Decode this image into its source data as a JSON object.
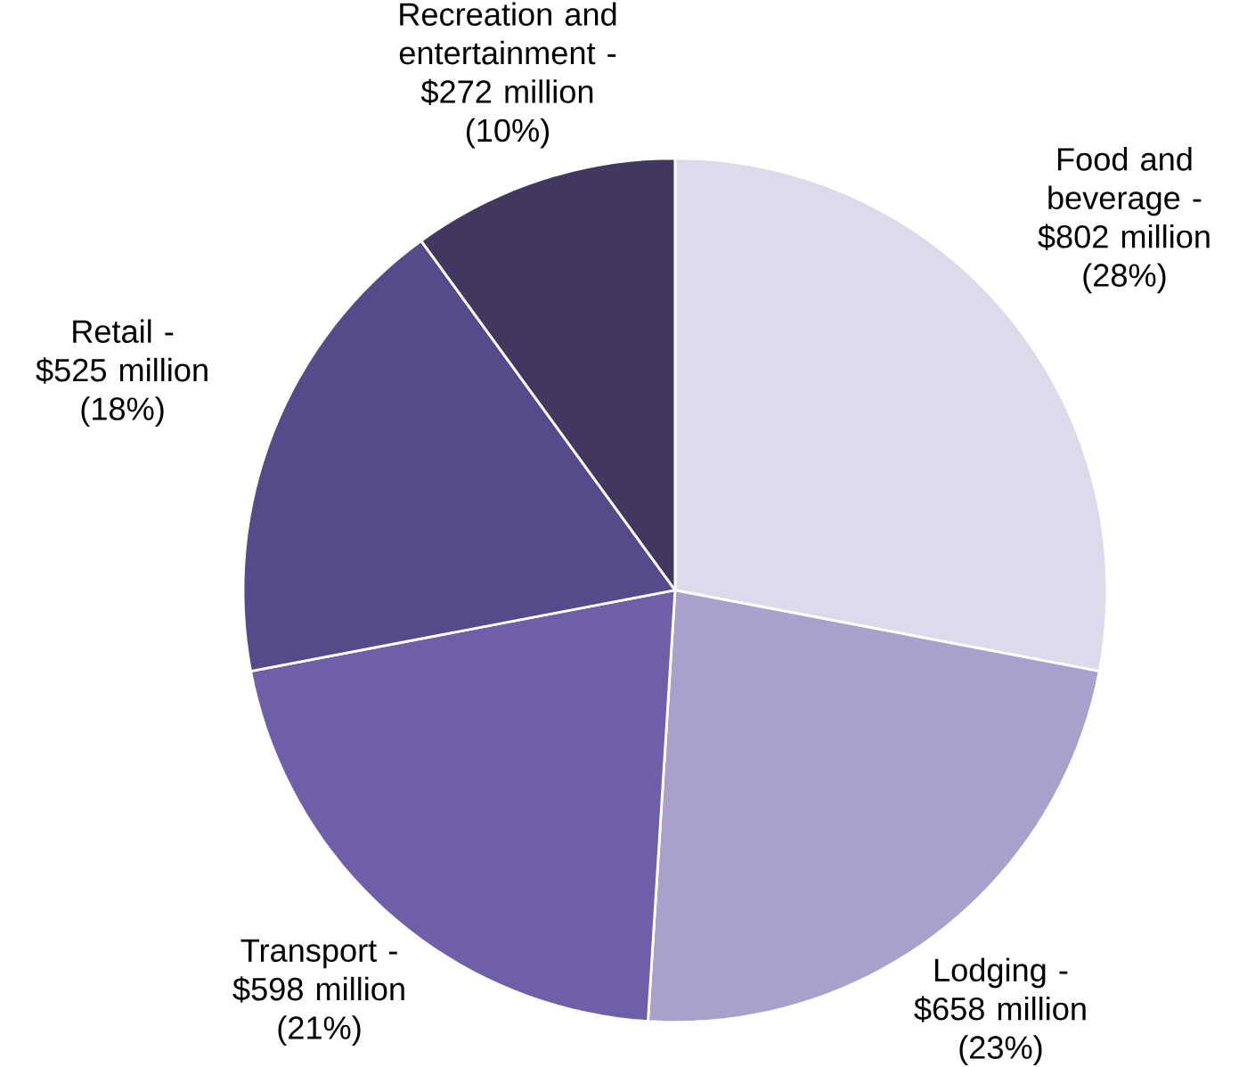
{
  "chart_data": {
    "type": "pie",
    "categories": [
      "Food and beverage -",
      "Lodging -",
      "Transport -",
      "Retail -",
      "Recreation and entertainment -"
    ],
    "value_labels": [
      "$802 million (28%)",
      "$658 million (23%)",
      "$598 million (21%)",
      "$525 million (18%)",
      "$272 million (10%)"
    ],
    "values": [
      28,
      23,
      21,
      18,
      10
    ],
    "colors": [
      "#dedaeb",
      "#a9a0cb",
      "#6f5fa8",
      "#574a8a",
      "#41375f"
    ]
  }
}
